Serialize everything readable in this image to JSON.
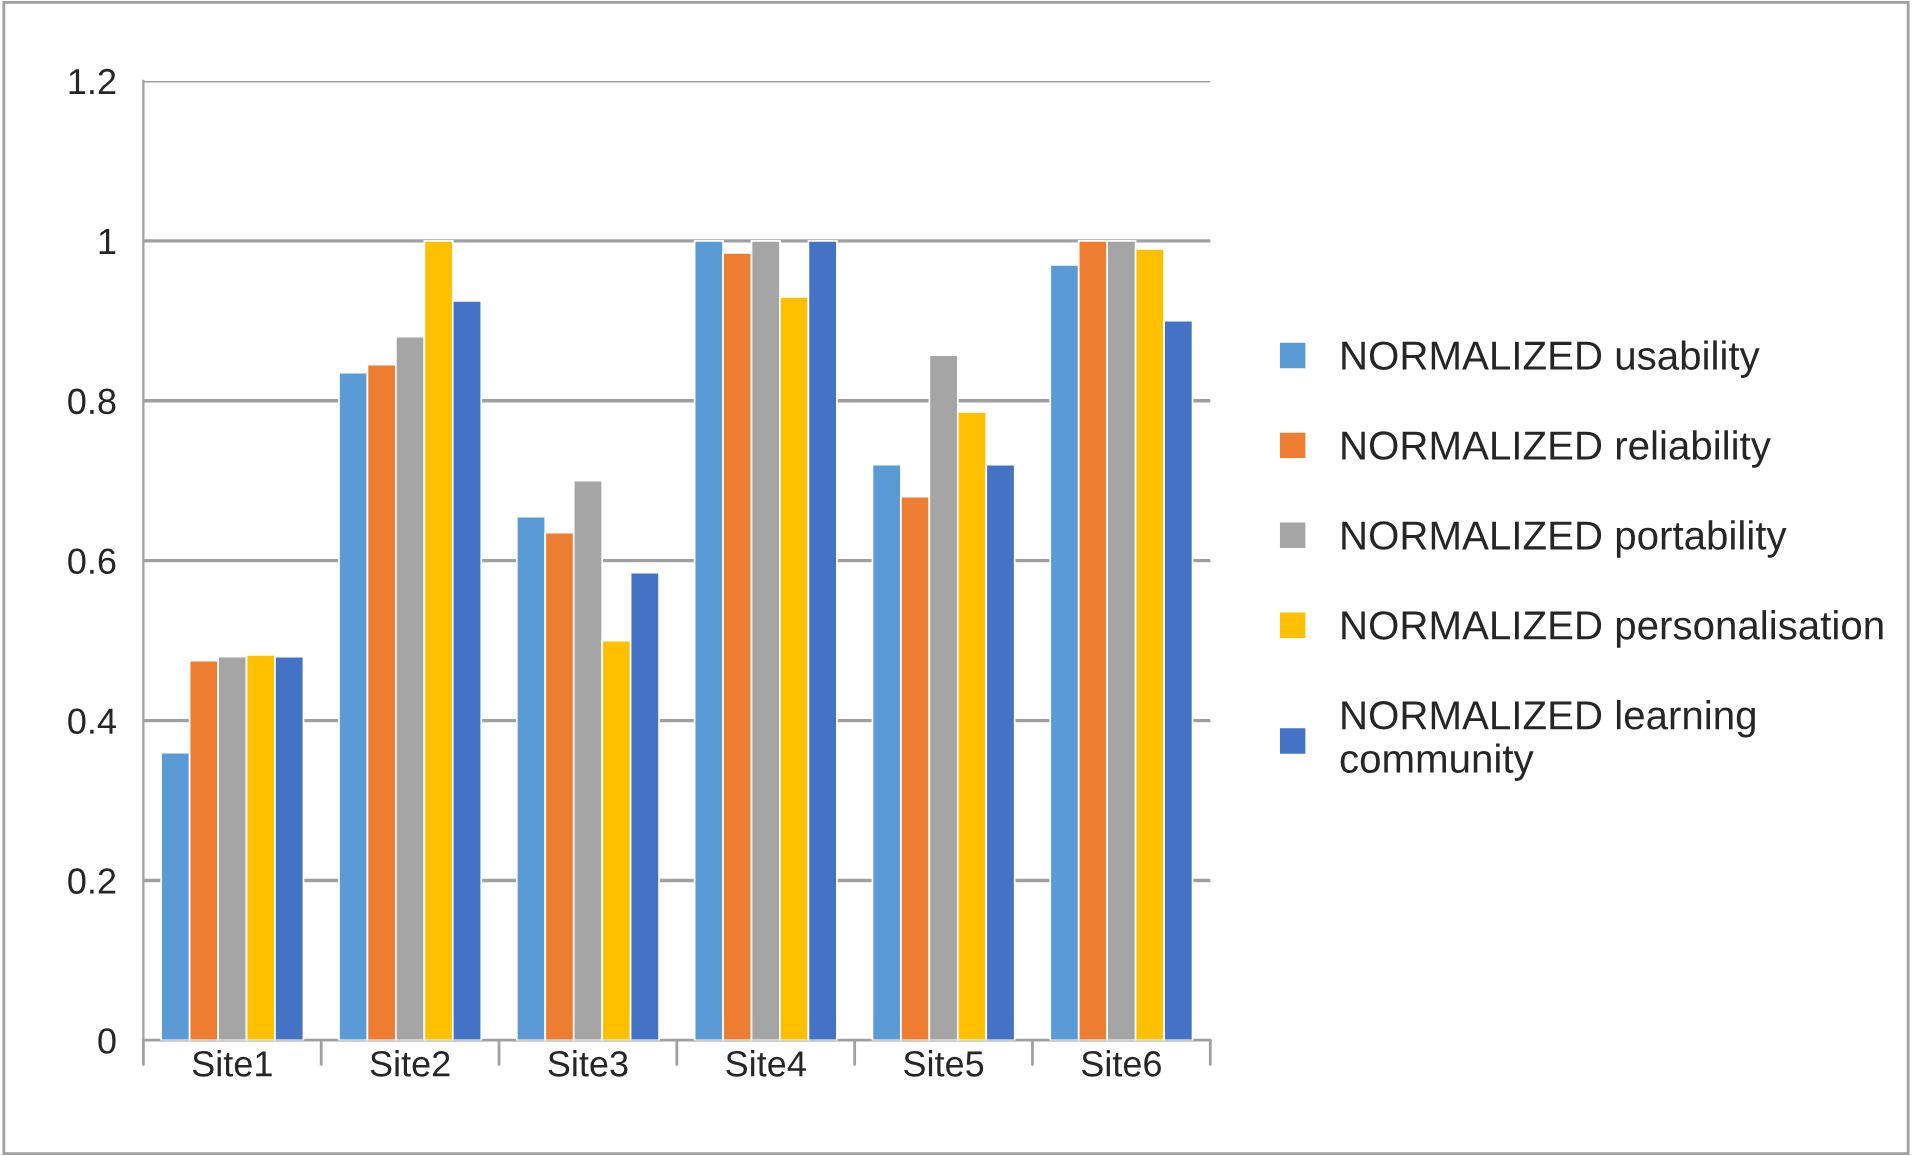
{
  "chart_data": {
    "type": "bar",
    "categories": [
      "Site1",
      "Site2",
      "Site3",
      "Site4",
      "Site5",
      "Site6"
    ],
    "series": [
      {
        "name": "NORMALIZED usability",
        "color": "#5b9bd5",
        "values": [
          0.36,
          0.835,
          0.655,
          1.0,
          0.72,
          0.97
        ]
      },
      {
        "name": "NORMALIZED reliability",
        "color": "#ed7d31",
        "values": [
          0.475,
          0.845,
          0.635,
          0.985,
          0.68,
          1.0
        ]
      },
      {
        "name": "NORMALIZED portability",
        "color": "#a5a5a5",
        "values": [
          0.48,
          0.88,
          0.7,
          1.0,
          0.857,
          1.0
        ]
      },
      {
        "name": "NORMALIZED personalisation",
        "color": "#ffc000",
        "values": [
          0.482,
          1.0,
          0.5,
          0.93,
          0.786,
          0.99
        ]
      },
      {
        "name": "NORMALIZED learning community",
        "color": "#4472c4",
        "values": [
          0.48,
          0.925,
          0.585,
          1.0,
          0.72,
          0.9
        ]
      }
    ],
    "ylim": [
      0,
      1.2
    ],
    "yticks": [
      0,
      {
        "value": 0.2,
        "label": "0.2"
      },
      {
        "value": 0.4,
        "label": "0.4"
      },
      {
        "value": 0.6,
        "label": "0.6"
      },
      {
        "value": 0.8,
        "label": "0.8"
      },
      1,
      {
        "value": 1.2,
        "label": "1.2"
      }
    ],
    "grid": "y",
    "legend": "right"
  }
}
